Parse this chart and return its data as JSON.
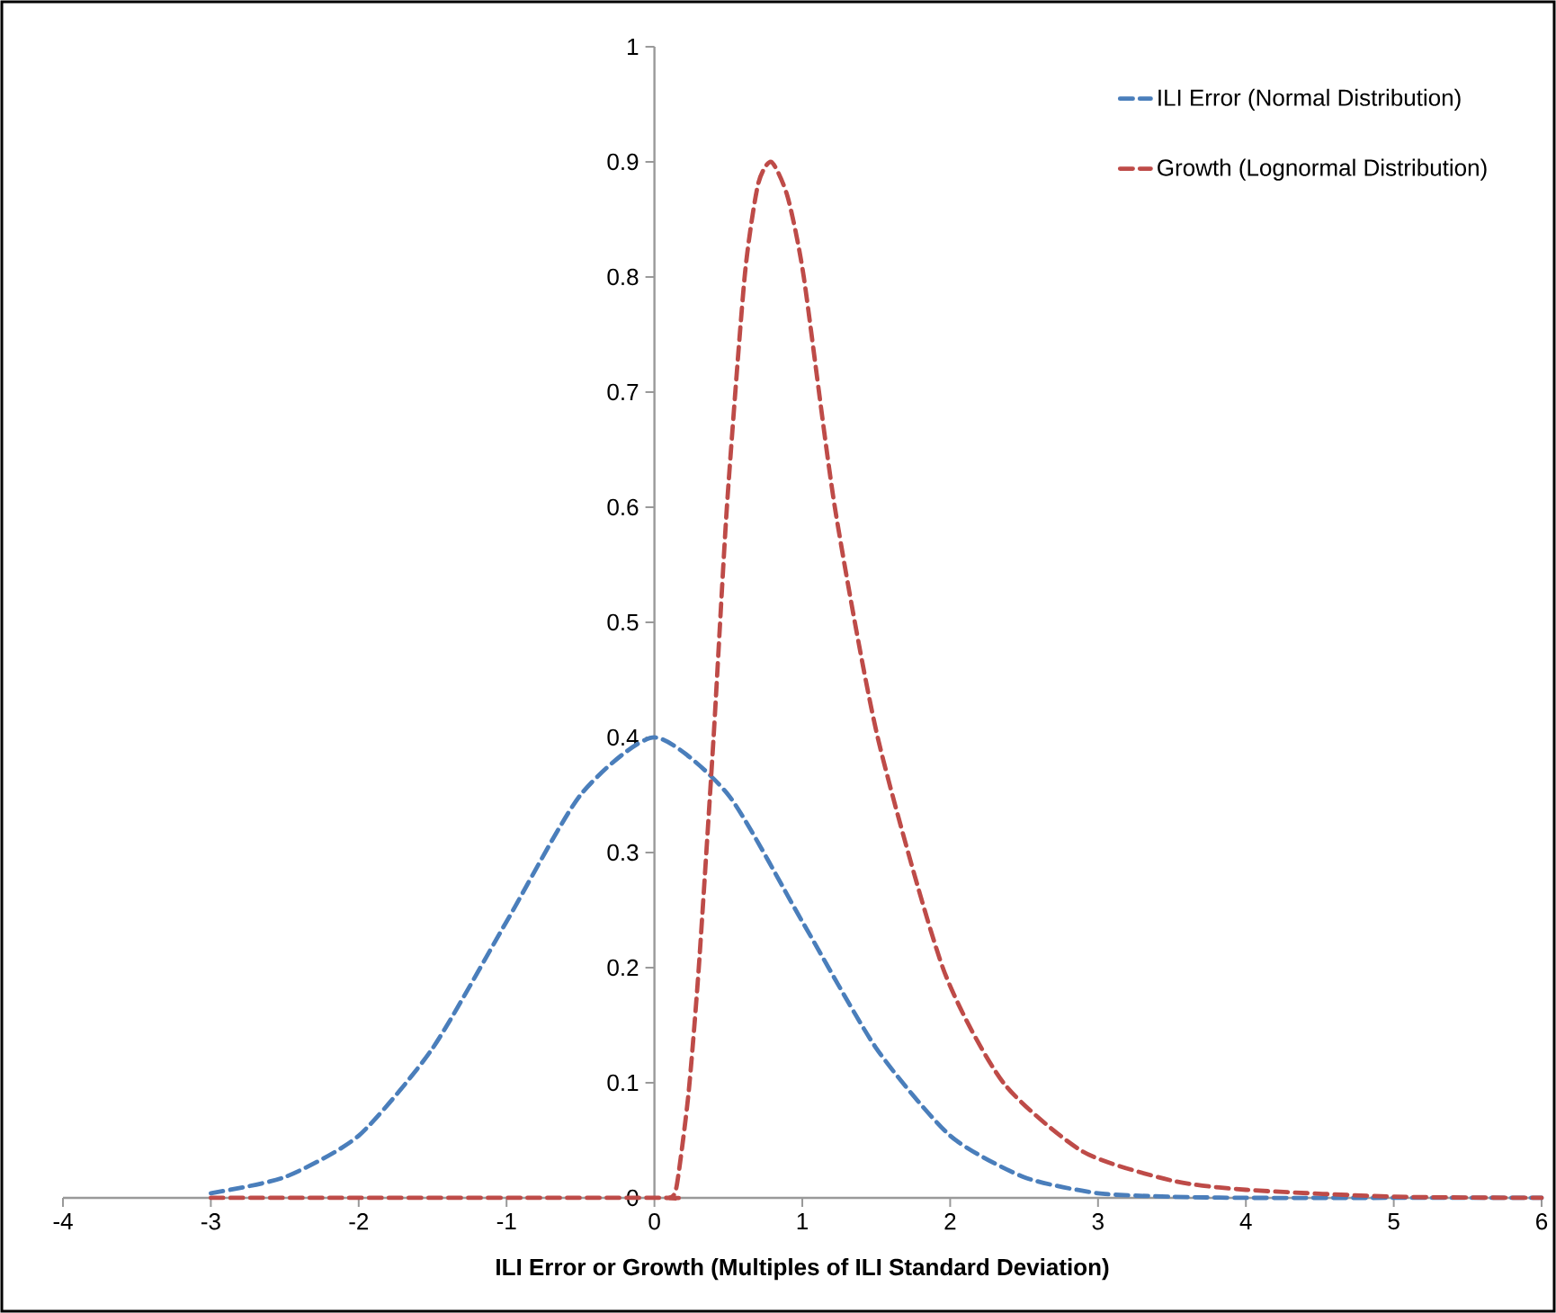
{
  "chart_data": {
    "type": "line",
    "xlabel": "ILI Error or Growth  (Multiples of ILI Standard Deviation)",
    "xlim": [
      -4,
      6
    ],
    "ylim": [
      0,
      1
    ],
    "xticks": [
      -4,
      -3,
      -2,
      -1,
      0,
      1,
      2,
      3,
      4,
      5,
      6
    ],
    "yticks": [
      0,
      0.1,
      0.2,
      0.3,
      0.4,
      0.5,
      0.6,
      0.7,
      0.8,
      0.9,
      1
    ],
    "legend": "top right",
    "line_style": "dashed",
    "marker": "none",
    "grid": false,
    "series": [
      {
        "name": "ILI Error (Normal Distribution)",
        "color": "#4a7ebb",
        "x": [
          -3,
          -2.5,
          -2,
          -1.5,
          -1,
          -0.5,
          0,
          0.5,
          1,
          1.5,
          2,
          2.5,
          3,
          3.5,
          4,
          5,
          6
        ],
        "values": [
          0.004,
          0.018,
          0.054,
          0.13,
          0.24,
          0.35,
          0.4,
          0.35,
          0.24,
          0.13,
          0.054,
          0.018,
          0.004,
          0.001,
          0,
          0,
          0
        ]
      },
      {
        "name": "Growth (Lognormal Distribution)",
        "color": "#be4b48",
        "x": [
          -3,
          0,
          0.1,
          0.15,
          0.23,
          0.3,
          0.4,
          0.49,
          0.61,
          0.7,
          0.79,
          0.9,
          1.01,
          1.22,
          1.51,
          1.95,
          2.36,
          2.9,
          3.5,
          4,
          5,
          6
        ],
        "values": [
          0,
          0,
          0,
          0.01,
          0.09,
          0.2,
          0.4,
          0.6,
          0.8,
          0.88,
          0.9,
          0.87,
          0.8,
          0.6,
          0.4,
          0.2,
          0.1,
          0.04,
          0.015,
          0.007,
          0.001,
          0
        ]
      }
    ]
  }
}
